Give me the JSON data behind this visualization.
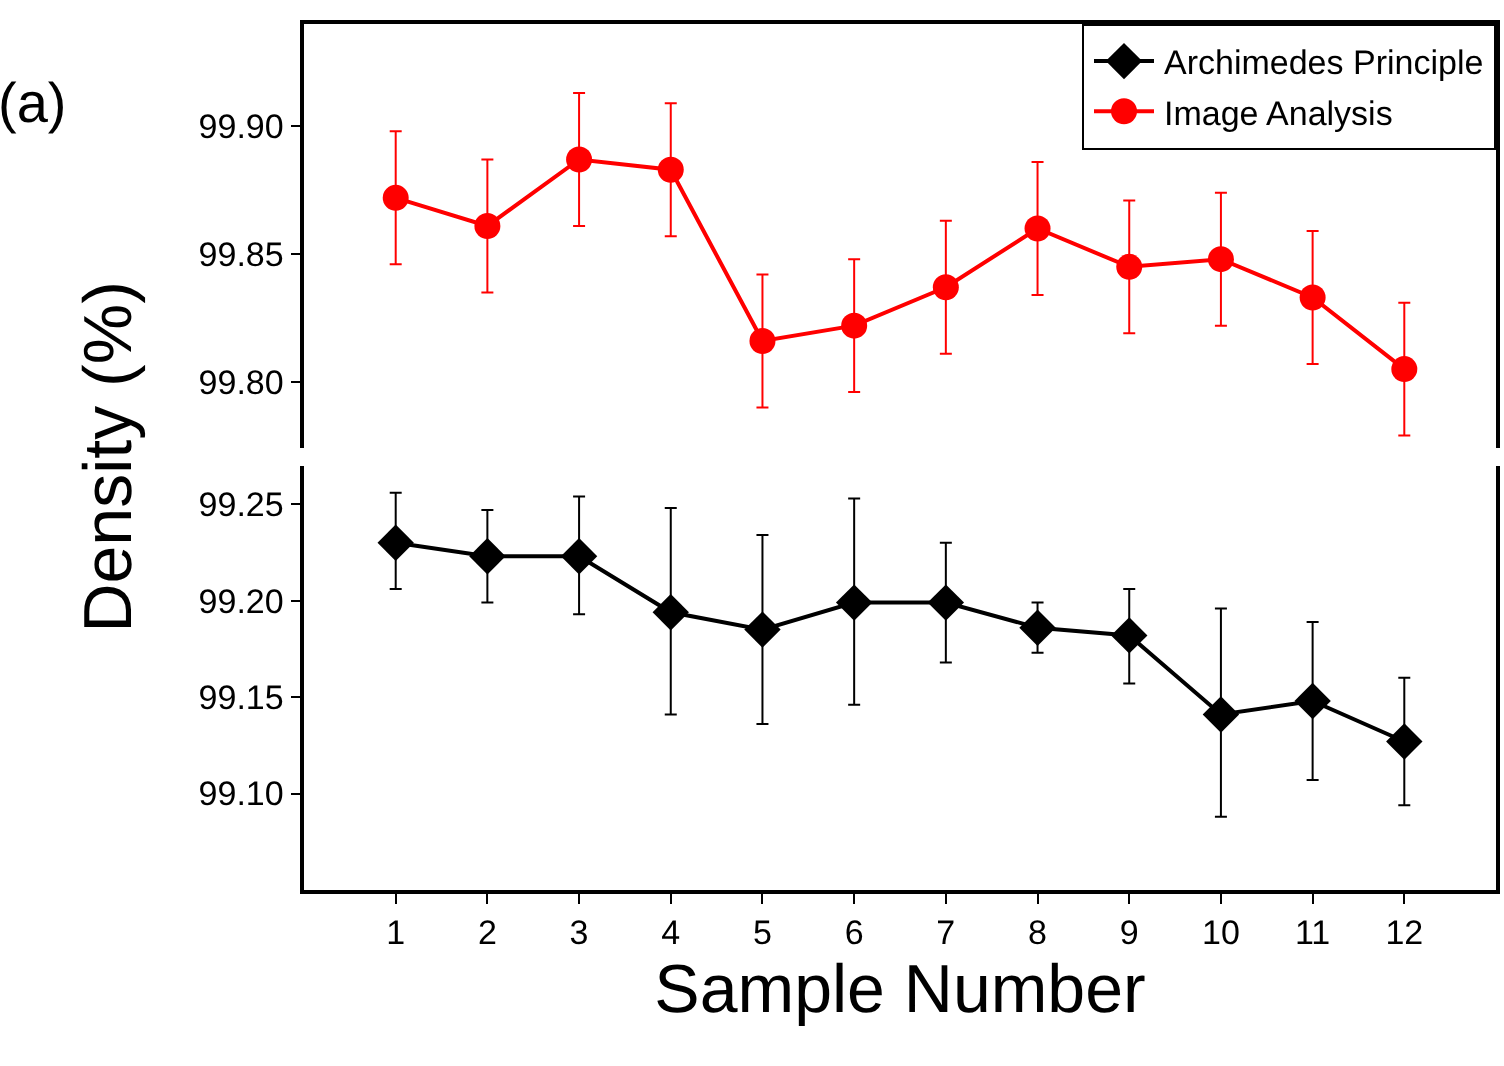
{
  "chart_data": [
    {
      "type": "line",
      "ylabel": "Density (%)",
      "annotations": [
        "(a)"
      ],
      "x": [
        1,
        2,
        3,
        4,
        5,
        6,
        7,
        8,
        9,
        10,
        11,
        12
      ],
      "series": [
        {
          "name": "Image Analysis",
          "color": "#ff0000",
          "marker": "circle",
          "values": [
            99.872,
            99.861,
            99.887,
            99.883,
            99.816,
            99.822,
            99.837,
            99.86,
            99.845,
            99.848,
            99.833,
            99.805
          ],
          "errors": [
            0.026,
            0.026,
            0.026,
            0.026,
            0.026,
            0.026,
            0.026,
            0.026,
            0.026,
            0.026,
            0.026,
            0.026
          ]
        }
      ],
      "xlim": [
        0,
        13
      ],
      "xticks": [
        1,
        2,
        3,
        4,
        5,
        6,
        7,
        8,
        9,
        10,
        11,
        12
      ],
      "ylim": [
        99.774,
        99.94
      ],
      "yticks": [
        {
          "value": 99.8,
          "label": "99.80"
        },
        {
          "value": 99.85,
          "label": "99.85"
        },
        {
          "value": 99.9,
          "label": "99.90"
        }
      ],
      "tick_labels": "y",
      "legend": "top right",
      "line_style": "solid"
    },
    {
      "type": "line",
      "xlabel": "Sample Number",
      "x": [
        1,
        2,
        3,
        4,
        5,
        6,
        7,
        8,
        9,
        10,
        11,
        12
      ],
      "series": [
        {
          "name": "Archimedes Principle",
          "color": "#000000",
          "marker": "diamond",
          "values": [
            99.23,
            99.223,
            99.223,
            99.194,
            99.185,
            99.199,
            99.199,
            99.186,
            99.182,
            99.141,
            99.148,
            99.127
          ],
          "errors": [
            [
              99.206,
              99.256
            ],
            [
              99.199,
              99.247
            ],
            [
              99.193,
              99.254
            ],
            [
              99.141,
              99.248
            ],
            [
              99.136,
              99.234
            ],
            [
              99.146,
              99.253
            ],
            [
              99.168,
              99.23
            ],
            [
              99.173,
              99.199
            ],
            [
              99.157,
              99.206
            ],
            [
              99.088,
              99.196
            ],
            [
              99.107,
              99.189
            ],
            [
              99.094,
              99.16
            ]
          ]
        }
      ],
      "xlim": [
        0,
        13
      ],
      "xticks": [
        1,
        2,
        3,
        4,
        5,
        6,
        7,
        8,
        9,
        10,
        11,
        12
      ],
      "ylim": [
        99.05,
        99.27
      ],
      "yticks": [
        {
          "value": 99.1,
          "label": "99.10"
        },
        {
          "value": 99.15,
          "label": "99.15"
        },
        {
          "value": 99.2,
          "label": "99.20"
        },
        {
          "value": 99.25,
          "label": "99.25"
        }
      ],
      "legend": "top right",
      "line_style": "solid"
    }
  ]
}
